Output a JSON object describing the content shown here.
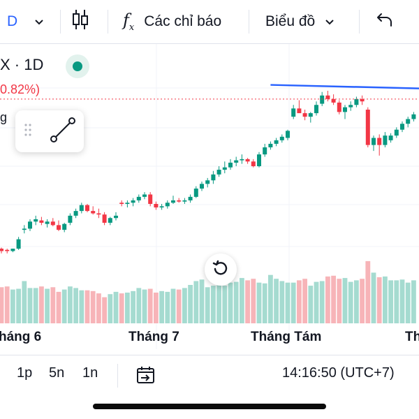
{
  "toolbar": {
    "symbol_fragment": "D",
    "indicators_label": "Các chỉ báo",
    "chart_type_label": "Biểu đồ",
    "icons": [
      "chevron-down-icon",
      "candles-icon",
      "fx-icon",
      "chevron-down-icon",
      "undo-icon"
    ]
  },
  "legend": {
    "symbol_interval": "X · 1D",
    "change_pct": "0.82%)",
    "label_fragment": "g",
    "colors": {
      "up": "#089981",
      "down": "#f23645",
      "trendline": "#2962ff"
    }
  },
  "x_axis": {
    "months": [
      "háng 6",
      "Tháng 7",
      "Tháng Tám",
      "Th"
    ]
  },
  "bottom": {
    "ranges": [
      "1p",
      "5n",
      "1n"
    ],
    "time": "14:16:50 (UTC+7)"
  },
  "chart_data": {
    "type": "candlestick",
    "note_axis": "price values read relative to chart, no price axis visible",
    "ohlc": [
      [
        9.0,
        9.1,
        8.6,
        8.8
      ],
      [
        8.9,
        9.0,
        8.6,
        8.8
      ],
      [
        8.8,
        9.0,
        8.7,
        9.0
      ],
      [
        9.0,
        10.0,
        8.9,
        9.8
      ],
      [
        10.6,
        11.0,
        10.3,
        10.7
      ],
      [
        10.7,
        11.5,
        10.5,
        11.3
      ],
      [
        11.3,
        11.8,
        11.0,
        11.5
      ],
      [
        11.4,
        11.7,
        11.0,
        11.2
      ],
      [
        11.1,
        11.5,
        10.8,
        11.3
      ],
      [
        11.3,
        11.6,
        10.9,
        11.0
      ],
      [
        11.0,
        11.4,
        10.5,
        10.6
      ],
      [
        10.6,
        11.2,
        10.4,
        11.1
      ],
      [
        11.2,
        12.0,
        11.0,
        11.8
      ],
      [
        11.8,
        12.4,
        11.6,
        12.2
      ],
      [
        12.2,
        12.9,
        12.0,
        12.7
      ],
      [
        12.7,
        12.8,
        12.1,
        12.2
      ],
      [
        12.2,
        12.6,
        11.9,
        12.0
      ],
      [
        12.0,
        12.4,
        11.6,
        11.9
      ],
      [
        11.9,
        12.1,
        11.0,
        11.2
      ],
      [
        11.2,
        11.7,
        11.0,
        11.6
      ],
      [
        11.6,
        12.1,
        11.4,
        11.8
      ],
      [
        12.9,
        13.1,
        12.6,
        12.8
      ],
      [
        12.8,
        13.1,
        12.5,
        12.9
      ],
      [
        12.9,
        13.3,
        12.6,
        13.1
      ],
      [
        13.1,
        13.6,
        12.9,
        13.4
      ],
      [
        13.4,
        13.8,
        13.2,
        13.6
      ],
      [
        13.6,
        13.8,
        12.6,
        12.8
      ],
      [
        12.8,
        13.0,
        12.3,
        12.5
      ],
      [
        12.5,
        12.8,
        12.3,
        12.6
      ],
      [
        12.6,
        13.1,
        12.4,
        12.9
      ],
      [
        12.9,
        13.5,
        12.8,
        13.1
      ],
      [
        13.1,
        13.3,
        12.9,
        13.0
      ],
      [
        13.0,
        13.3,
        12.8,
        13.1
      ],
      [
        13.1,
        13.6,
        12.9,
        13.4
      ],
      [
        13.4,
        14.3,
        13.3,
        14.1
      ],
      [
        14.1,
        14.7,
        13.9,
        14.5
      ],
      [
        14.5,
        15.0,
        14.2,
        14.8
      ],
      [
        14.8,
        15.6,
        14.5,
        15.3
      ],
      [
        15.3,
        16.0,
        15.1,
        15.7
      ],
      [
        15.7,
        16.4,
        15.4,
        15.9
      ],
      [
        15.9,
        16.6,
        15.7,
        16.3
      ],
      [
        16.3,
        16.8,
        16.0,
        16.5
      ],
      [
        16.5,
        17.0,
        16.2,
        16.6
      ],
      [
        16.6,
        16.7,
        16.2,
        16.4
      ],
      [
        16.4,
        16.6,
        15.9,
        16.0
      ],
      [
        16.0,
        17.2,
        15.9,
        17.0
      ],
      [
        17.0,
        17.9,
        16.8,
        17.6
      ],
      [
        17.6,
        18.1,
        17.4,
        17.9
      ],
      [
        17.9,
        18.4,
        17.7,
        18.2
      ],
      [
        18.2,
        18.7,
        18.0,
        18.5
      ],
      [
        18.4,
        19.1,
        18.2,
        19.0
      ],
      [
        20.2,
        21.2,
        20.0,
        20.9
      ],
      [
        20.9,
        21.6,
        20.6,
        20.5
      ],
      [
        20.5,
        20.8,
        19.9,
        20.2
      ],
      [
        20.2,
        20.6,
        19.7,
        20.5
      ],
      [
        20.5,
        21.5,
        20.3,
        21.2
      ],
      [
        21.3,
        22.3,
        21.1,
        22.0
      ],
      [
        22.0,
        22.4,
        21.5,
        21.7
      ],
      [
        21.7,
        22.1,
        21.2,
        21.4
      ],
      [
        21.4,
        21.6,
        20.4,
        20.6
      ],
      [
        20.6,
        21.2,
        20.0,
        21.0
      ],
      [
        21.0,
        21.5,
        20.7,
        21.2
      ],
      [
        21.2,
        21.9,
        21.0,
        21.7
      ],
      [
        21.7,
        22.0,
        21.2,
        21.5
      ],
      [
        20.8,
        21.0,
        17.6,
        17.8
      ],
      [
        17.8,
        18.6,
        17.3,
        18.4
      ],
      [
        18.4,
        18.7,
        16.9,
        17.8
      ],
      [
        17.8,
        18.9,
        17.6,
        18.6
      ],
      [
        18.2,
        18.8,
        18.0,
        18.6
      ],
      [
        18.6,
        19.3,
        18.4,
        19.1
      ],
      [
        19.1,
        19.8,
        18.9,
        19.6
      ],
      [
        19.6,
        20.2,
        19.3,
        20.0
      ],
      [
        20.0,
        20.6,
        19.8,
        20.4
      ]
    ],
    "volumes": [
      0.47,
      0.48,
      0.44,
      0.45,
      0.55,
      0.46,
      0.46,
      0.48,
      0.45,
      0.47,
      0.41,
      0.44,
      0.48,
      0.46,
      0.43,
      0.43,
      0.42,
      0.39,
      0.34,
      0.38,
      0.41,
      0.39,
      0.4,
      0.42,
      0.46,
      0.44,
      0.45,
      0.4,
      0.42,
      0.41,
      0.45,
      0.44,
      0.46,
      0.5,
      0.55,
      0.57,
      0.47,
      0.49,
      0.52,
      0.49,
      0.53,
      0.54,
      0.59,
      0.56,
      0.58,
      0.53,
      0.52,
      0.63,
      0.58,
      0.55,
      0.53,
      0.53,
      0.56,
      0.58,
      0.49,
      0.54,
      0.55,
      0.61,
      0.62,
      0.58,
      0.59,
      0.54,
      0.56,
      0.58,
      0.81,
      0.66,
      0.6,
      0.61,
      0.56,
      0.56,
      0.57,
      0.53,
      0.56
    ],
    "trendline": [
      [
        47,
        22.9
      ],
      [
        73,
        22.6
      ]
    ],
    "price_line": 21.7
  }
}
